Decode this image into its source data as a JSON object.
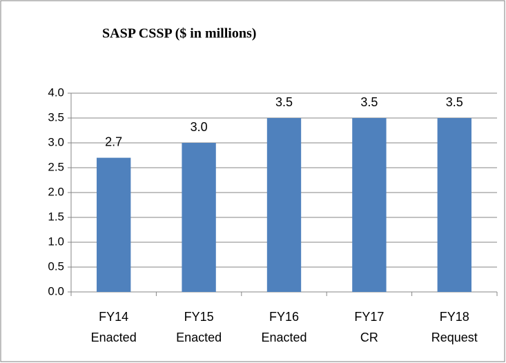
{
  "chart_data": {
    "type": "bar",
    "title": "SASP CSSP ($ in millions)",
    "categories": [
      "FY14\nEnacted",
      "FY15\nEnacted",
      "FY16\nEnacted",
      "FY17\nCR",
      "FY18\nRequest"
    ],
    "values": [
      2.7,
      3,
      3.5,
      3.5,
      3.5
    ],
    "value_labels": [
      "2.7",
      "3.0",
      "3.5",
      "3.5",
      "3.5"
    ],
    "color": "#4f81bd",
    "ylim": [
      0,
      4
    ],
    "yticks": [
      {
        "value": 0,
        "label": "0.0"
      },
      0.5,
      {
        "value": 1,
        "label": "1.0"
      },
      1.5,
      {
        "value": 2,
        "label": "2.0"
      },
      2.5,
      {
        "value": 3,
        "label": "3.0"
      },
      3.5,
      {
        "value": 4,
        "label": "4.0"
      }
    ],
    "grid": true
  }
}
